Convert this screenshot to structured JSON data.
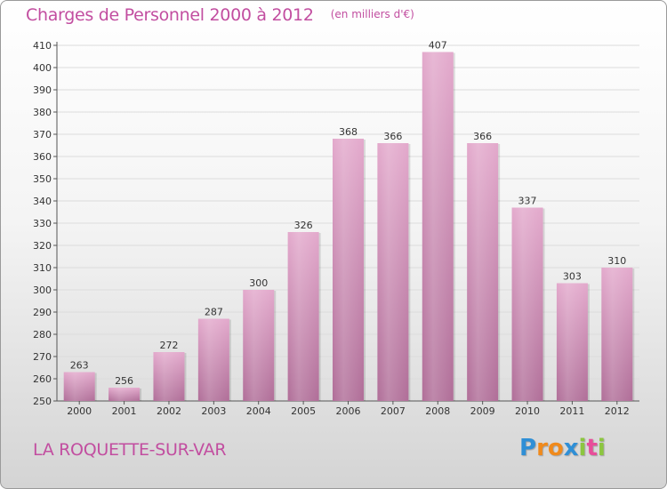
{
  "title": "Charges de Personnel 2000 à 2012",
  "subtitle": "(en milliers d'€)",
  "location": "LA ROQUETTE-SUR-VAR",
  "logo": {
    "letters": [
      "P",
      "r",
      "o",
      "x",
      "i",
      "t",
      "i"
    ],
    "colors": [
      "#2f8fd6",
      "#f08a1c",
      "#f08a1c",
      "#2f8fd6",
      "#8cc63f",
      "#e84e9a",
      "#8cc63f"
    ]
  },
  "colors": {
    "bar_top": "#e3a9cc",
    "bar_bottom": "#b06e98",
    "title": "#c24ea0"
  },
  "chart_data": {
    "type": "bar",
    "categories": [
      "2000",
      "2001",
      "2002",
      "2003",
      "2004",
      "2005",
      "2006",
      "2007",
      "2008",
      "2009",
      "2010",
      "2011",
      "2012"
    ],
    "values": [
      263,
      256,
      272,
      287,
      300,
      326,
      368,
      366,
      407,
      366,
      337,
      303,
      310
    ],
    "title": "Charges de Personnel 2000 à 2012",
    "subtitle": "(en milliers d'€)",
    "xlabel": "",
    "ylabel": "",
    "ylim": [
      250,
      410
    ],
    "yticks": [
      "250",
      "260",
      "270",
      "280",
      "290",
      "300",
      "310",
      "320",
      "330",
      "340",
      "350",
      "360",
      "370",
      "380",
      "390",
      "400",
      "410"
    ],
    "grid": true,
    "data_labels": [
      "263",
      "256",
      "272",
      "287",
      "300",
      "326",
      "368",
      "366",
      "407",
      "366",
      "337",
      "303",
      "310"
    ]
  }
}
